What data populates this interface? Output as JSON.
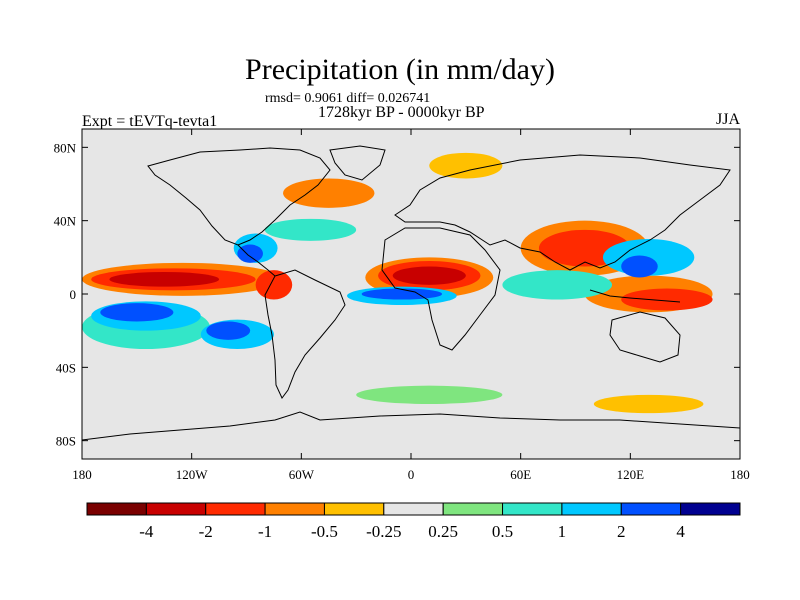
{
  "title": "Precipitation (in mm/day)",
  "stats_text": "rmsd= 0.9061 diff= 0.026741",
  "period_text": "1728kyr BP - 0000kyr BP",
  "experiment_text": "Expt = tEVTq-tevta1",
  "season_text": "JJA",
  "map": {
    "projection": "cylindrical equidistant",
    "lon_range": [
      -180,
      180
    ],
    "lat_range": [
      -90,
      90
    ],
    "x_ticks": [
      {
        "lon": -180,
        "label": "180"
      },
      {
        "lon": -120,
        "label": "120W"
      },
      {
        "lon": -60,
        "label": "60W"
      },
      {
        "lon": 0,
        "label": "0"
      },
      {
        "lon": 60,
        "label": "60E"
      },
      {
        "lon": 120,
        "label": "120E"
      },
      {
        "lon": 180,
        "label": "180"
      }
    ],
    "y_ticks": [
      {
        "lat": 80,
        "label": "80N"
      },
      {
        "lat": 40,
        "label": "40N"
      },
      {
        "lat": 0,
        "label": "0"
      },
      {
        "lat": -40,
        "label": "40S"
      },
      {
        "lat": -80,
        "label": "80S"
      }
    ],
    "background_color": "#e6e6e6"
  },
  "colorbar": {
    "colors": [
      "#7a0000",
      "#c80000",
      "#ff2a00",
      "#ff8000",
      "#ffc000",
      "#e6e6e6",
      "#7fe57f",
      "#33e6c8",
      "#00c8ff",
      "#0050ff",
      "#000090"
    ],
    "labels": [
      "-4",
      "-2",
      "-1",
      "-0.5",
      "-0.25",
      "0.25",
      "0.5",
      "1",
      "2",
      "4"
    ]
  },
  "anomaly_regions": [
    {
      "level": "-4",
      "color": "#c80000",
      "lon": -135,
      "lat": 8,
      "rlon": 30,
      "rlat": 4
    },
    {
      "level": "-2",
      "color": "#ff2a00",
      "lon": -130,
      "lat": 8,
      "rlon": 45,
      "rlat": 6
    },
    {
      "level": "-1",
      "color": "#ff8000",
      "lon": -125,
      "lat": 8,
      "rlon": 55,
      "rlat": 9
    },
    {
      "level": "2",
      "color": "#0050ff",
      "lon": -150,
      "lat": -10,
      "rlon": 20,
      "rlat": 5
    },
    {
      "level": "1",
      "color": "#00c8ff",
      "lon": -145,
      "lat": -12,
      "rlon": 30,
      "rlat": 8
    },
    {
      "level": "0.5",
      "color": "#33e6c8",
      "lon": -145,
      "lat": -18,
      "rlon": 35,
      "rlat": 12
    },
    {
      "level": "2",
      "color": "#0050ff",
      "lon": -100,
      "lat": -20,
      "rlon": 12,
      "rlat": 5
    },
    {
      "level": "1",
      "color": "#00c8ff",
      "lon": -95,
      "lat": -22,
      "rlon": 20,
      "rlat": 8
    },
    {
      "level": "-2",
      "color": "#ff2a00",
      "lon": -75,
      "lat": 5,
      "rlon": 10,
      "rlat": 8
    },
    {
      "level": "1",
      "color": "#00c8ff",
      "lon": -85,
      "lat": 25,
      "rlon": 12,
      "rlat": 8
    },
    {
      "level": "2",
      "color": "#0050ff",
      "lon": -88,
      "lat": 22,
      "rlon": 7,
      "rlat": 5
    },
    {
      "level": "0.5",
      "color": "#33e6c8",
      "lon": -55,
      "lat": 35,
      "rlon": 25,
      "rlat": 6
    },
    {
      "level": "-1",
      "color": "#ff8000",
      "lon": -45,
      "lat": 55,
      "rlon": 25,
      "rlat": 8
    },
    {
      "level": "-4",
      "color": "#c80000",
      "lon": 10,
      "lat": 10,
      "rlon": 20,
      "rlat": 5
    },
    {
      "level": "-2",
      "color": "#ff2a00",
      "lon": 10,
      "lat": 10,
      "rlon": 28,
      "rlat": 8
    },
    {
      "level": "-1",
      "color": "#ff8000",
      "lon": 10,
      "lat": 9,
      "rlon": 35,
      "rlat": 11
    },
    {
      "level": "2",
      "color": "#0050ff",
      "lon": -5,
      "lat": 0,
      "rlon": 22,
      "rlat": 3
    },
    {
      "level": "1",
      "color": "#00c8ff",
      "lon": -5,
      "lat": -1,
      "rlon": 30,
      "rlat": 5
    },
    {
      "level": "-2",
      "color": "#ff2a00",
      "lon": 95,
      "lat": 25,
      "rlon": 25,
      "rlat": 10
    },
    {
      "level": "-1",
      "color": "#ff8000",
      "lon": 95,
      "lat": 25,
      "rlon": 35,
      "rlat": 15
    },
    {
      "level": "2",
      "color": "#0050ff",
      "lon": 125,
      "lat": 15,
      "rlon": 10,
      "rlat": 6
    },
    {
      "level": "1",
      "color": "#00c8ff",
      "lon": 130,
      "lat": 20,
      "rlon": 25,
      "rlat": 10
    },
    {
      "level": "-2",
      "color": "#ff2a00",
      "lon": 140,
      "lat": -3,
      "rlon": 25,
      "rlat": 6
    },
    {
      "level": "-1",
      "color": "#ff8000",
      "lon": 130,
      "lat": 0,
      "rlon": 35,
      "rlat": 10
    },
    {
      "level": "0.5",
      "color": "#33e6c8",
      "lon": 80,
      "lat": 5,
      "rlon": 30,
      "rlat": 8
    },
    {
      "level": "-0.5",
      "color": "#ffc000",
      "lon": 30,
      "lat": 70,
      "rlon": 20,
      "rlat": 7
    },
    {
      "level": "0.5",
      "color": "#7fe57f",
      "lon": 10,
      "lat": -55,
      "rlon": 40,
      "rlat": 5
    },
    {
      "level": "-0.5",
      "color": "#ffc000",
      "lon": 130,
      "lat": -60,
      "rlon": 30,
      "rlat": 5
    }
  ]
}
